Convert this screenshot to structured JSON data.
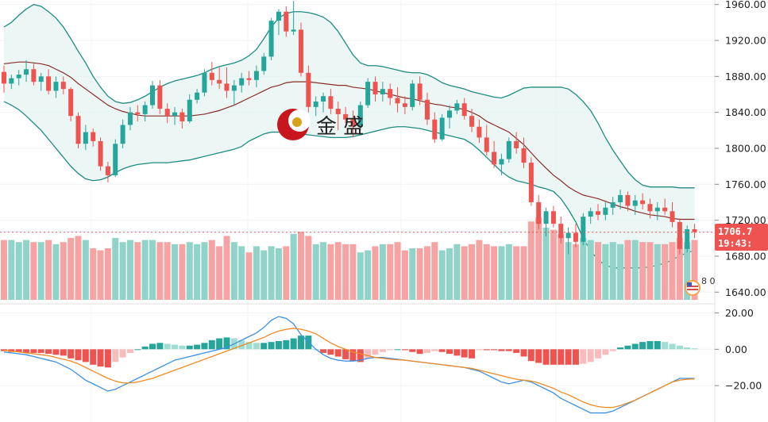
{
  "colors": {
    "up": "#26a69a",
    "down": "#ef5350",
    "up_volume": "#8fd3c9",
    "down_volume": "#f5a3a3",
    "up_hist_light": "#9fdcd2",
    "down_hist_light": "#f8bcbc",
    "band": "#1e8c82",
    "band_fill": "#e6f4f2",
    "middle": "#8b2d28",
    "macd": "#3d8fe0",
    "signal": "#f08a24",
    "price_badge": "#ef5350",
    "price_line": "#ef5350"
  },
  "watermark": {
    "text": "金 盛",
    "icon": "jinsheng-logo-icon"
  },
  "price_badge": {
    "price": "1706.7",
    "countdown": "19:43:"
  },
  "corner_badge": {
    "text": "8 0",
    "icon": "us-flag-icon"
  },
  "chart_data": [
    {
      "type": "candlestick",
      "title": "",
      "xlabel": "",
      "ylabel": "",
      "ylim": [
        1627,
        1965
      ],
      "yticks": [
        "1960.00",
        "1920.00",
        "1880.00",
        "1840.00",
        "1800.00",
        "1760.00",
        "1720.00",
        "1680.00",
        "1640.00"
      ],
      "ytick_values": [
        1960,
        1920,
        1880,
        1840,
        1800,
        1760,
        1720,
        1680,
        1640
      ],
      "grid": true,
      "last_price": 1706.7,
      "ohlc": [
        [
          1885,
          1892,
          1862,
          1872
        ],
        [
          1872,
          1882,
          1866,
          1878
        ],
        [
          1878,
          1887,
          1870,
          1882
        ],
        [
          1882,
          1898,
          1874,
          1888
        ],
        [
          1888,
          1894,
          1870,
          1874
        ],
        [
          1874,
          1884,
          1864,
          1880
        ],
        [
          1880,
          1888,
          1860,
          1864
        ],
        [
          1864,
          1880,
          1856,
          1874
        ],
        [
          1874,
          1880,
          1860,
          1866
        ],
        [
          1866,
          1868,
          1830,
          1836
        ],
        [
          1836,
          1840,
          1800,
          1805
        ],
        [
          1805,
          1826,
          1798,
          1818
        ],
        [
          1818,
          1822,
          1802,
          1808
        ],
        [
          1808,
          1812,
          1775,
          1780
        ],
        [
          1780,
          1785,
          1762,
          1770
        ],
        [
          1770,
          1810,
          1768,
          1805
        ],
        [
          1805,
          1832,
          1800,
          1826
        ],
        [
          1826,
          1846,
          1820,
          1840
        ],
        [
          1840,
          1848,
          1830,
          1838
        ],
        [
          1838,
          1852,
          1830,
          1848
        ],
        [
          1848,
          1875,
          1844,
          1870
        ],
        [
          1870,
          1876,
          1838,
          1844
        ],
        [
          1844,
          1850,
          1828,
          1836
        ],
        [
          1836,
          1846,
          1826,
          1840
        ],
        [
          1840,
          1844,
          1822,
          1830
        ],
        [
          1830,
          1860,
          1828,
          1854
        ],
        [
          1854,
          1866,
          1850,
          1862
        ],
        [
          1862,
          1888,
          1858,
          1884
        ],
        [
          1884,
          1896,
          1870,
          1876
        ],
        [
          1876,
          1890,
          1866,
          1872
        ],
        [
          1872,
          1890,
          1856,
          1864
        ],
        [
          1864,
          1876,
          1848,
          1870
        ],
        [
          1870,
          1884,
          1862,
          1878
        ],
        [
          1878,
          1886,
          1870,
          1876
        ],
        [
          1876,
          1892,
          1868,
          1886
        ],
        [
          1886,
          1906,
          1882,
          1902
        ],
        [
          1902,
          1945,
          1898,
          1942
        ],
        [
          1942,
          1955,
          1926,
          1952
        ],
        [
          1952,
          1958,
          1924,
          1930
        ],
        [
          1930,
          1964,
          1926,
          1932
        ],
        [
          1932,
          1940,
          1880,
          1884
        ],
        [
          1884,
          1892,
          1840,
          1846
        ],
        [
          1846,
          1858,
          1836,
          1852
        ],
        [
          1852,
          1862,
          1840,
          1858
        ],
        [
          1858,
          1866,
          1838,
          1844
        ],
        [
          1844,
          1852,
          1820,
          1838
        ],
        [
          1838,
          1846,
          1828,
          1832
        ],
        [
          1832,
          1842,
          1812,
          1824
        ],
        [
          1824,
          1852,
          1820,
          1848
        ],
        [
          1848,
          1878,
          1845,
          1874
        ],
        [
          1874,
          1880,
          1852,
          1860
        ],
        [
          1860,
          1874,
          1852,
          1866
        ],
        [
          1866,
          1872,
          1848,
          1856
        ],
        [
          1856,
          1868,
          1840,
          1850
        ],
        [
          1850,
          1858,
          1838,
          1846
        ],
        [
          1846,
          1876,
          1842,
          1872
        ],
        [
          1872,
          1880,
          1848,
          1854
        ],
        [
          1854,
          1862,
          1826,
          1832
        ],
        [
          1832,
          1840,
          1806,
          1810
        ],
        [
          1810,
          1838,
          1808,
          1834
        ],
        [
          1834,
          1848,
          1822,
          1842
        ],
        [
          1842,
          1854,
          1838,
          1850
        ],
        [
          1850,
          1856,
          1832,
          1836
        ],
        [
          1836,
          1844,
          1818,
          1824
        ],
        [
          1824,
          1832,
          1806,
          1812
        ],
        [
          1812,
          1826,
          1792,
          1796
        ],
        [
          1796,
          1808,
          1778,
          1782
        ],
        [
          1782,
          1794,
          1770,
          1788
        ],
        [
          1788,
          1812,
          1784,
          1808
        ],
        [
          1808,
          1818,
          1794,
          1800
        ],
        [
          1800,
          1812,
          1778,
          1784
        ],
        [
          1784,
          1790,
          1736,
          1740
        ],
        [
          1740,
          1748,
          1710,
          1716
        ],
        [
          1716,
          1734,
          1702,
          1730
        ],
        [
          1730,
          1736,
          1712,
          1716
        ],
        [
          1716,
          1724,
          1694,
          1700
        ],
        [
          1700,
          1712,
          1682,
          1706
        ],
        [
          1706,
          1716,
          1690,
          1696
        ],
        [
          1696,
          1728,
          1692,
          1724
        ],
        [
          1724,
          1734,
          1716,
          1730
        ],
        [
          1730,
          1738,
          1720,
          1726
        ],
        [
          1726,
          1740,
          1720,
          1734
        ],
        [
          1734,
          1746,
          1726,
          1740
        ],
        [
          1740,
          1754,
          1732,
          1748
        ],
        [
          1748,
          1752,
          1730,
          1736
        ],
        [
          1736,
          1748,
          1726,
          1742
        ],
        [
          1742,
          1750,
          1732,
          1738
        ],
        [
          1738,
          1744,
          1722,
          1730
        ],
        [
          1730,
          1740,
          1720,
          1734
        ],
        [
          1734,
          1744,
          1726,
          1730
        ],
        [
          1730,
          1740,
          1712,
          1718
        ],
        [
          1718,
          1722,
          1682,
          1688
        ],
        [
          1688,
          1714,
          1684,
          1710
        ],
        [
          1710,
          1716,
          1700,
          1706.7
        ]
      ],
      "bollinger": {
        "upper": [
          1935,
          1940,
          1948,
          1955,
          1960,
          1958,
          1952,
          1945,
          1935,
          1922,
          1908,
          1895,
          1880,
          1868,
          1858,
          1852,
          1850,
          1851,
          1854,
          1858,
          1863,
          1868,
          1872,
          1875,
          1877,
          1879,
          1881,
          1884,
          1888,
          1891,
          1893,
          1895,
          1898,
          1903,
          1910,
          1922,
          1935,
          1945,
          1950,
          1952,
          1952,
          1951,
          1949,
          1946,
          1940,
          1930,
          1917,
          1904,
          1895,
          1892,
          1892,
          1891,
          1889,
          1887,
          1885,
          1884,
          1884,
          1882,
          1878,
          1873,
          1870,
          1868,
          1866,
          1863,
          1861,
          1859,
          1857,
          1856,
          1859,
          1863,
          1867,
          1868,
          1868,
          1868,
          1868,
          1868,
          1866,
          1860,
          1852,
          1842,
          1828,
          1812,
          1798,
          1786,
          1774,
          1765,
          1759,
          1757,
          1757,
          1757,
          1757,
          1756,
          1756,
          1756
        ],
        "middle": [
          1894,
          1895,
          1896,
          1896,
          1895,
          1894,
          1892,
          1888,
          1884,
          1879,
          1872,
          1866,
          1860,
          1854,
          1848,
          1844,
          1841,
          1839,
          1837,
          1836,
          1836,
          1836,
          1836,
          1836,
          1836,
          1836,
          1837,
          1838,
          1840,
          1842,
          1845,
          1848,
          1852,
          1856,
          1860,
          1864,
          1868,
          1870,
          1873,
          1874,
          1874,
          1874,
          1873,
          1872,
          1871,
          1870,
          1870,
          1868,
          1867,
          1866,
          1864,
          1862,
          1860,
          1858,
          1856,
          1855,
          1853,
          1851,
          1849,
          1848,
          1846,
          1845,
          1843,
          1840,
          1836,
          1830,
          1826,
          1822,
          1818,
          1811,
          1804,
          1795,
          1786,
          1778,
          1770,
          1764,
          1757,
          1752,
          1748,
          1746,
          1744,
          1741,
          1738,
          1735,
          1733,
          1730,
          1728,
          1726,
          1725,
          1724,
          1722,
          1721,
          1721,
          1721
        ],
        "lower": [
          1852,
          1848,
          1843,
          1836,
          1828,
          1820,
          1810,
          1800,
          1790,
          1780,
          1772,
          1766,
          1764,
          1765,
          1768,
          1773,
          1777,
          1780,
          1782,
          1783,
          1784,
          1784,
          1784,
          1785,
          1786,
          1787,
          1789,
          1791,
          1793,
          1795,
          1797,
          1799,
          1802,
          1808,
          1812,
          1816,
          1818,
          1818,
          1818,
          1817,
          1816,
          1815,
          1814,
          1813,
          1812,
          1812,
          1812,
          1813,
          1815,
          1817,
          1819,
          1821,
          1823,
          1824,
          1824,
          1823,
          1822,
          1820,
          1818,
          1816,
          1814,
          1812,
          1810,
          1805,
          1798,
          1790,
          1782,
          1774,
          1768,
          1764,
          1762,
          1760,
          1757,
          1755,
          1752,
          1744,
          1732,
          1718,
          1700,
          1686,
          1676,
          1670,
          1667,
          1667,
          1667,
          1667,
          1667,
          1668,
          1670,
          1672,
          1676,
          1680,
          1684,
          1686
        ]
      }
    },
    {
      "type": "bar",
      "title": "",
      "series_name": "",
      "values": [
        58,
        58,
        56,
        58,
        56,
        56,
        58,
        54,
        56,
        60,
        62,
        58,
        50,
        48,
        50,
        60,
        56,
        58,
        56,
        58,
        58,
        56,
        56,
        54,
        54,
        56,
        54,
        56,
        58,
        52,
        62,
        56,
        52,
        46,
        52,
        48,
        52,
        50,
        52,
        64,
        66,
        62,
        54,
        56,
        54,
        56,
        54,
        54,
        46,
        48,
        52,
        54,
        54,
        56,
        48,
        50,
        50,
        52,
        56,
        48,
        50,
        54,
        52,
        54,
        58,
        54,
        52,
        52,
        54,
        52,
        52,
        76,
        80,
        70,
        68,
        64,
        56,
        54,
        60,
        58,
        56,
        54,
        56,
        54,
        58,
        58,
        56,
        56,
        54,
        54,
        56,
        60,
        56,
        58
      ]
    },
    {
      "type": "bar",
      "title": "",
      "ylim": [
        -40,
        25
      ],
      "yticks": [
        "20.00",
        "0.00",
        "−20.00"
      ],
      "ytick_values": [
        20,
        0,
        -20
      ],
      "values": [
        -1,
        -1.5,
        -1.5,
        -2,
        -2,
        -2,
        -2.5,
        -3,
        -3.5,
        -5,
        -6,
        -7,
        -8.5,
        -9.5,
        -10,
        -7,
        -4.5,
        -2,
        0,
        1.5,
        3,
        3.5,
        3,
        2.5,
        2,
        2,
        2.5,
        3.5,
        5,
        6,
        6.5,
        6,
        5,
        4,
        3.5,
        3.5,
        4,
        4.5,
        5,
        6,
        7.5,
        7.5,
        0,
        -2,
        -3,
        -4,
        -5.5,
        -6.5,
        -7,
        -5,
        -3,
        -1.5,
        -0.5,
        0,
        -0.5,
        -1.5,
        -2.5,
        -2,
        -1,
        -1.5,
        -2.5,
        -3.5,
        -4.5,
        -5,
        -0.5,
        -0.5,
        -0.5,
        -1,
        -1,
        -2,
        -4,
        -6.5,
        -7.5,
        -8.5,
        -8.5,
        -8.5,
        -8.5,
        -8.5,
        -8,
        -7,
        -5,
        -3,
        -1,
        1,
        2,
        3,
        4,
        4.5,
        4.5,
        4,
        3,
        2,
        1,
        0.5
      ]
    },
    {
      "type": "line",
      "title": "",
      "ylim": [
        -40,
        25
      ],
      "series": [
        {
          "name": "",
          "values": [
            -1.5,
            -2,
            -2.5,
            -3,
            -4,
            -5,
            -6,
            -7,
            -9,
            -11,
            -14,
            -17,
            -19,
            -21,
            -23,
            -22,
            -20,
            -18,
            -16,
            -14,
            -12,
            -10,
            -8,
            -6,
            -5,
            -4,
            -3,
            -2,
            -1,
            0,
            1,
            3,
            5,
            7,
            9,
            12,
            16,
            18,
            17,
            14,
            8,
            4,
            0,
            -3,
            -5,
            -6,
            -6.5,
            -6.5,
            -6,
            -5,
            -4.5,
            -4.5,
            -5,
            -5.5,
            -6,
            -6.5,
            -7,
            -7.5,
            -8,
            -8.5,
            -9,
            -9.5,
            -10,
            -11,
            -12,
            -14,
            -16,
            -18,
            -19,
            -18,
            -17,
            -18,
            -20,
            -22,
            -24,
            -27,
            -29,
            -31,
            -33,
            -35,
            -35,
            -35,
            -34,
            -32,
            -30,
            -28,
            -26,
            -24,
            -22,
            -20,
            -18,
            -16,
            -16,
            -16
          ]
        },
        {
          "name": "",
          "values": [
            -0.5,
            -1,
            -1.5,
            -2,
            -2.5,
            -3,
            -3.5,
            -4.5,
            -5.5,
            -6.5,
            -8,
            -10,
            -12,
            -14,
            -16,
            -17.5,
            -18.5,
            -18.5,
            -18,
            -17,
            -16,
            -14.5,
            -13,
            -11.5,
            -10,
            -8.5,
            -7,
            -5.5,
            -4,
            -2.5,
            -1,
            0.5,
            2,
            3.5,
            5,
            6.5,
            8.5,
            10,
            11,
            11.5,
            11,
            10,
            8.5,
            6,
            3.5,
            1.5,
            0,
            -1.5,
            -2.5,
            -3.5,
            -4.5,
            -5,
            -5.5,
            -5.8,
            -6,
            -6.5,
            -7,
            -7.5,
            -8,
            -8.5,
            -9,
            -9.5,
            -10,
            -10.5,
            -11.5,
            -12.5,
            -13.5,
            -14.5,
            -15.5,
            -16.5,
            -17,
            -17.5,
            -18.5,
            -20,
            -21.5,
            -23.5,
            -25,
            -27,
            -29,
            -30.5,
            -31.5,
            -32,
            -32,
            -31,
            -29.5,
            -28,
            -26,
            -24,
            -22,
            -20,
            -18,
            -17,
            -16.5,
            -16.3
          ]
        }
      ]
    }
  ]
}
